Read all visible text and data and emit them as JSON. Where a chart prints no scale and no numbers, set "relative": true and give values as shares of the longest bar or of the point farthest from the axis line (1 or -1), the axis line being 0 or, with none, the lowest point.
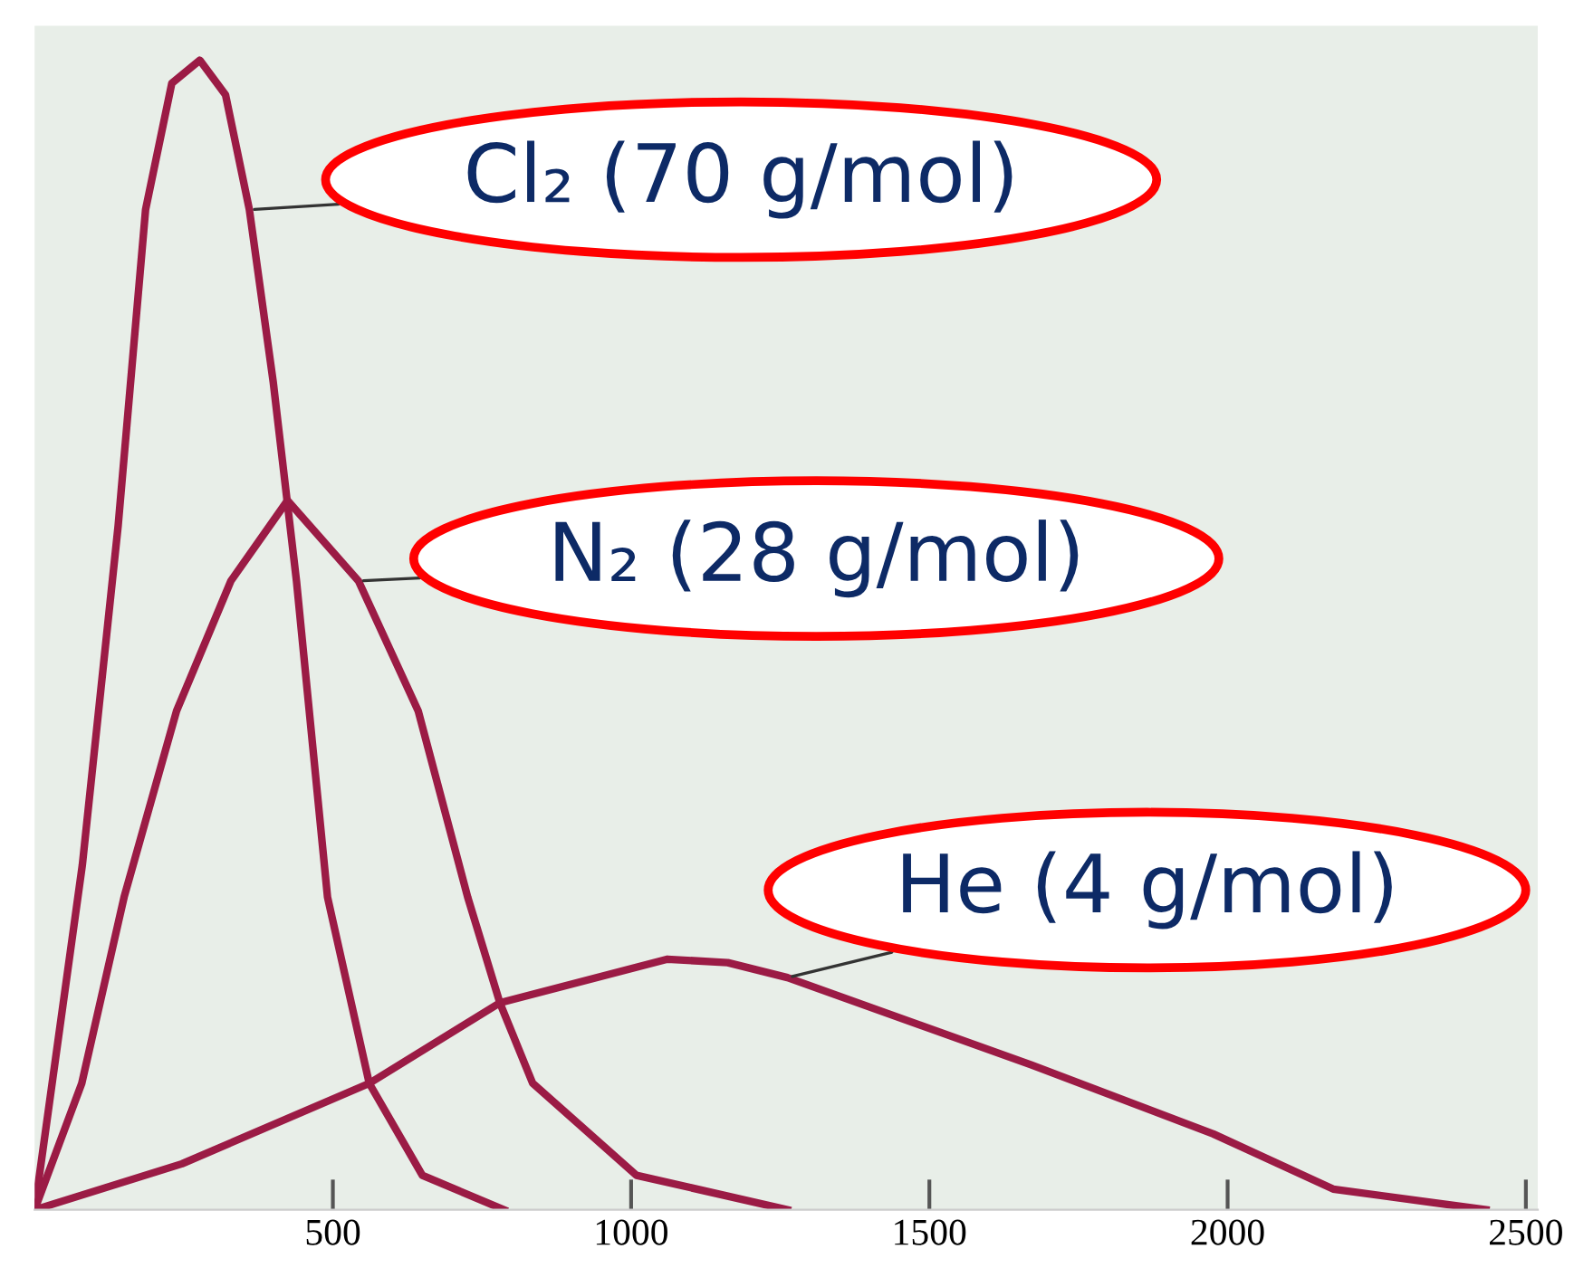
{
  "chart_data": {
    "type": "line",
    "relative": true,
    "xlim": [
      0,
      2520
    ],
    "xticks": [
      500,
      1000,
      1500,
      2000,
      2500
    ],
    "marker": "none",
    "line_style": "solid",
    "grid": false,
    "legend": false,
    "series": [
      {
        "name": "Cl₂ (70 g/mol)",
        "color": "#9b1b45",
        "x": [
          0,
          80,
          140,
          186,
          230,
          277,
          320,
          360,
          400,
          439,
          491,
          561,
          650,
          787
        ],
        "values": [
          0,
          0.3,
          0.595,
          0.87,
          0.98,
          1,
          0.97,
          0.87,
          0.72,
          0.547,
          0.272,
          0.11,
          0.03,
          0
        ]
      },
      {
        "name": "N₂ (28 g/mol)",
        "color": "#9b1b45",
        "x": [
          0,
          79,
          150,
          238,
          329,
          424,
          543,
          643,
          726,
          780,
          835,
          1009,
          1262
        ],
        "values": [
          0,
          0.11,
          0.272,
          0.434,
          0.547,
          0.617,
          0.547,
          0.434,
          0.272,
          0.18,
          0.11,
          0.03,
          0
        ]
      },
      {
        "name": "He (4 g/mol)",
        "color": "#9b1b45",
        "x": [
          0,
          247,
          561,
          780,
          1061,
          1162,
          1262,
          1671,
          1976,
          2177,
          2433
        ],
        "values": [
          0,
          0.04,
          0.11,
          0.18,
          0.218,
          0.215,
          0.202,
          0.126,
          0.066,
          0.018,
          0
        ]
      }
    ]
  }
}
